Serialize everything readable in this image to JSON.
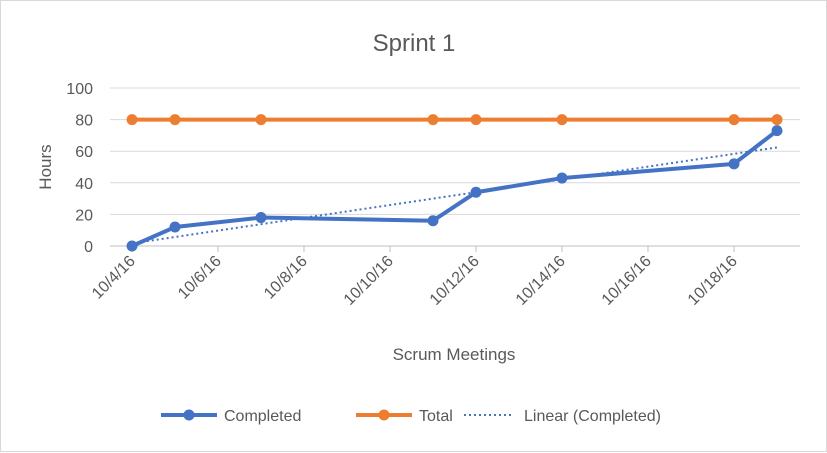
{
  "chart_data": {
    "type": "line",
    "title": "Sprint 1",
    "xlabel": "Scrum Meetings",
    "ylabel": "Hours",
    "ylim": [
      0,
      100
    ],
    "yticks": [
      "0",
      "20",
      "40",
      "60",
      "80",
      "100"
    ],
    "xlim": [
      "2016-10-04",
      "2016-10-19"
    ],
    "xticks": [
      "10/4/16",
      "10/6/16",
      "10/8/16",
      "10/10/16",
      "10/12/16",
      "10/14/16",
      "10/16/16",
      "10/18/16"
    ],
    "grid": true,
    "legend_position": "bottom",
    "series": [
      {
        "name": "Completed",
        "color": "#4472c4",
        "marker": "circle",
        "x": [
          "2016-10-04",
          "2016-10-05",
          "2016-10-07",
          "2016-10-11",
          "2016-10-12",
          "2016-10-14",
          "2016-10-18",
          "2016-10-19"
        ],
        "values": [
          0,
          12,
          18,
          16,
          34,
          43,
          52,
          73
        ]
      },
      {
        "name": "Total",
        "color": "#ed7d31",
        "marker": "circle",
        "x": [
          "2016-10-04",
          "2016-10-05",
          "2016-10-07",
          "2016-10-11",
          "2016-10-12",
          "2016-10-14",
          "2016-10-18",
          "2016-10-19"
        ],
        "values": [
          80,
          80,
          80,
          80,
          80,
          80,
          80,
          80
        ]
      }
    ],
    "trendline": {
      "name": "Linear  (Completed)",
      "color": "#4472c4",
      "style": "dotted",
      "type": "linear",
      "of_series": "Completed"
    }
  }
}
